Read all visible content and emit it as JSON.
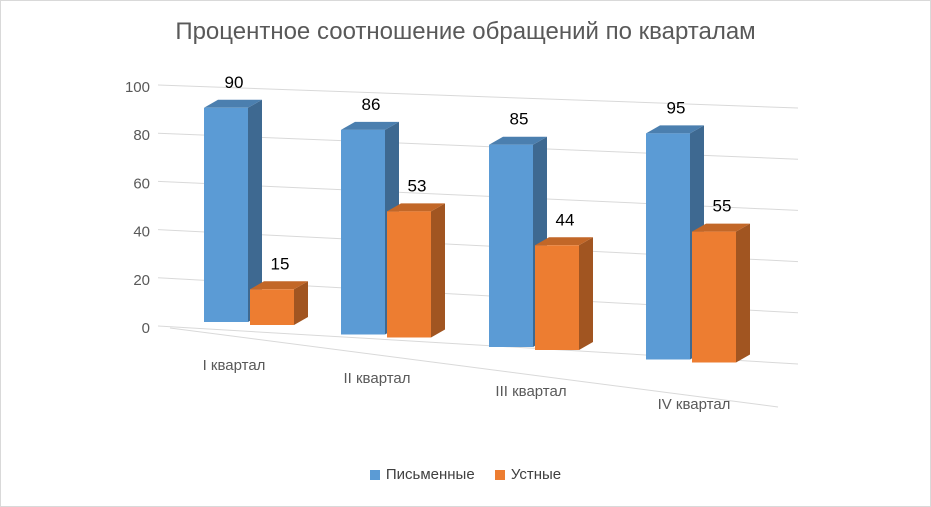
{
  "chart_data": {
    "type": "bar",
    "title": "Процентное соотношение обращений по кварталам",
    "categories": [
      "I квартал",
      "II квартал",
      "III квартал",
      "IV квартал"
    ],
    "series": [
      {
        "name": "Письменные",
        "values": [
          90,
          86,
          85,
          95
        ],
        "color": "#5b9bd5"
      },
      {
        "name": "Устные",
        "values": [
          15,
          53,
          44,
          55
        ],
        "color": "#ed7d31"
      }
    ],
    "y_ticks": [
      "0",
      "20",
      "40",
      "60",
      "80",
      "100"
    ],
    "ylim": [
      0,
      100
    ],
    "grid": true,
    "legend_position": "bottom",
    "style": "3d-clustered-column"
  }
}
